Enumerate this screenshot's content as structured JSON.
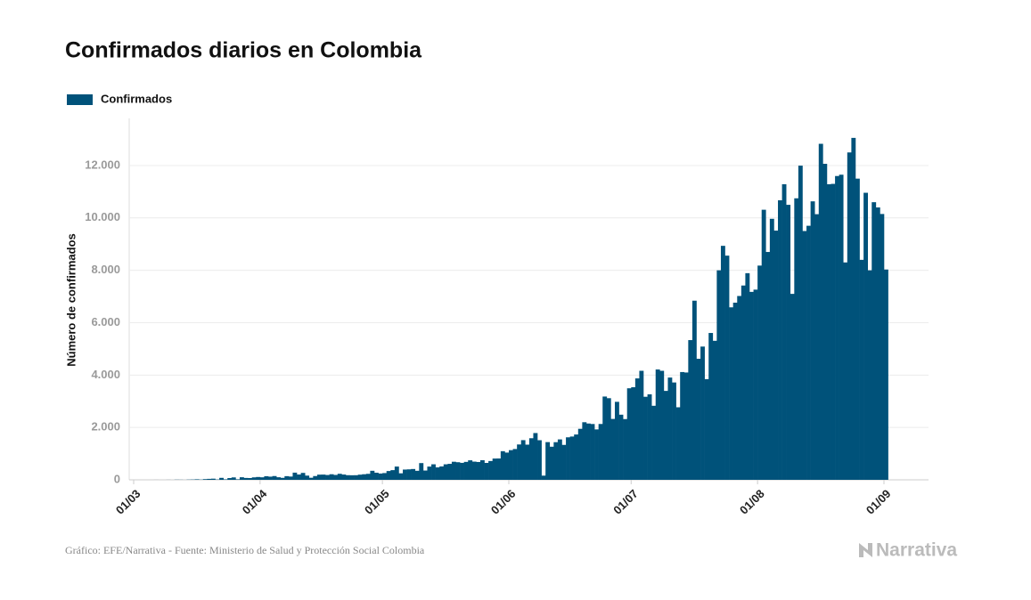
{
  "chart_data": {
    "type": "bar",
    "title": "Confirmados diarios en Colombia",
    "y_label": "Número de confirmados",
    "source": "Gráfico: EFE/Narrativa - Fuente: Ministerio de Salud y Protección Social Colombia",
    "brand": "Narrativa",
    "legend": "top-left",
    "grid": true,
    "ylim": [
      0,
      13800
    ],
    "yticks": [
      0,
      {
        "value": 2000,
        "label": "2.000"
      },
      {
        "value": 4000,
        "label": "4.000"
      },
      {
        "value": 6000,
        "label": "6.000"
      },
      {
        "value": 8000,
        "label": "8.000"
      },
      {
        "value": 10000,
        "label": "10.000"
      },
      {
        "value": 12000,
        "label": "12.000"
      }
    ],
    "categories": [
      "01/03",
      null,
      null,
      null,
      null,
      null,
      null,
      null,
      null,
      null,
      null,
      null,
      null,
      null,
      null,
      null,
      null,
      null,
      null,
      null,
      null,
      null,
      null,
      null,
      null,
      null,
      null,
      null,
      null,
      null,
      null,
      "01/04",
      null,
      null,
      null,
      null,
      null,
      null,
      null,
      null,
      null,
      null,
      null,
      null,
      null,
      null,
      null,
      null,
      null,
      null,
      null,
      null,
      null,
      null,
      null,
      null,
      null,
      null,
      null,
      null,
      null,
      "01/05",
      null,
      null,
      null,
      null,
      null,
      null,
      null,
      null,
      null,
      null,
      null,
      null,
      null,
      null,
      null,
      null,
      null,
      null,
      null,
      null,
      null,
      null,
      null,
      null,
      null,
      null,
      null,
      null,
      null,
      null,
      "01/06",
      null,
      null,
      null,
      null,
      null,
      null,
      null,
      null,
      null,
      null,
      null,
      null,
      null,
      null,
      null,
      null,
      null,
      null,
      null,
      null,
      null,
      null,
      null,
      null,
      null,
      null,
      null,
      null,
      null,
      "01/07",
      null,
      null,
      null,
      null,
      null,
      null,
      null,
      null,
      null,
      null,
      null,
      null,
      null,
      null,
      null,
      null,
      null,
      null,
      null,
      null,
      null,
      null,
      null,
      null,
      null,
      null,
      null,
      null,
      null,
      null,
      "01/08",
      null,
      null,
      null,
      null,
      null,
      null,
      null,
      null,
      null,
      null,
      null,
      null,
      null,
      null,
      null,
      null,
      null,
      null,
      null,
      null,
      null,
      null,
      null,
      null,
      null,
      null,
      null,
      null,
      null,
      null,
      "01/09"
    ],
    "series": [
      {
        "name": "Confirmados",
        "color": "#00527a",
        "values": [
          0,
          0,
          0,
          0,
          0,
          1,
          0,
          0,
          2,
          0,
          6,
          4,
          1,
          8,
          11,
          20,
          9,
          27,
          37,
          44,
          13,
          75,
          19,
          67,
          92,
          21,
          98,
          72,
          68,
          94,
          108,
          96,
          137,
          121,
          144,
          98,
          76,
          140,
          125,
          274,
          203,
          264,
          161,
          79,
          144,
          197,
          200,
          184,
          213,
          187,
          230,
          202,
          177,
          174,
          176,
          197,
          213,
          229,
          345,
          271,
          241,
          258,
          336,
          370,
          506,
          249,
          392,
          400,
          413,
          345,
          639,
          355,
          506,
          593,
          475,
          511,
          592,
          610,
          690,
          672,
          648,
          685,
          745,
          695,
          681,
          749,
          646,
          718,
          812,
          815,
          1093,
          1040,
          1133,
          1176,
          1350,
          1515,
          1343,
          1588,
          1786,
          1512,
          160,
          1440,
          1264,
          1437,
          1543,
          1334,
          1623,
          1653,
          1731,
          1948,
          2199,
          2150,
          2131,
          1925,
          2132,
          3180,
          3117,
          2325,
          2978,
          2487,
          2319,
          3495,
          3536,
          3872,
          4163,
          3171,
          3265,
          2827,
          4213,
          4163,
          3395,
          3905,
          3717,
          2770,
          4115,
          4098,
          5335,
          6840,
          4622,
          5088,
          3844,
          5607,
          5308,
          8000,
          8934,
          8560,
          6586,
          6764,
          7019,
          7419,
          7890,
          7176,
          7262,
          8180,
          10312,
          8700,
          9966,
          9516,
          10673,
          11287,
          10500,
          7100,
          10749,
          11996,
          9500,
          9700,
          10633,
          10142,
          12830,
          12066,
          11286,
          11300,
          11600,
          11650,
          8300,
          12500,
          13056,
          11500,
          8400,
          10960,
          8000,
          10600,
          10400,
          10150,
          8030
        ]
      }
    ]
  }
}
